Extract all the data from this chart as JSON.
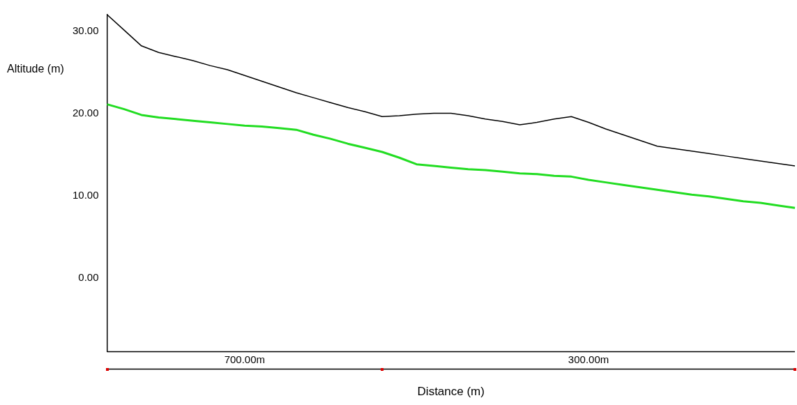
{
  "chart_data": {
    "type": "line",
    "xlabel": "Distance (m)",
    "ylabel": "Altitude (m)",
    "categories": [
      null,
      null,
      null,
      null,
      null,
      null,
      null,
      null,
      null,
      null,
      null,
      null,
      null,
      null,
      null,
      null,
      null,
      null,
      null,
      null,
      null,
      null,
      null,
      null,
      null,
      null,
      null,
      null,
      null,
      null,
      null,
      null,
      null,
      null,
      null,
      null,
      null,
      null,
      null,
      null,
      null
    ],
    "series": [
      {
        "color": "#000000",
        "values": [
          32.0,
          30.1,
          28.2,
          27.4,
          26.9,
          26.4,
          25.8,
          25.3,
          24.6,
          23.9,
          23.2,
          22.5,
          21.9,
          21.3,
          20.7,
          20.2,
          19.6,
          19.7,
          19.9,
          20.0,
          20.0,
          19.7,
          19.3,
          19.0,
          18.6,
          18.9,
          19.3,
          19.6,
          18.9,
          18.1,
          17.4,
          16.7,
          16.0,
          15.7,
          15.4,
          15.1,
          14.8,
          14.5,
          14.2,
          13.9,
          13.6
        ]
      },
      {
        "color": "#22dd22",
        "values": [
          21.1,
          20.5,
          19.8,
          19.5,
          19.3,
          19.1,
          18.9,
          18.7,
          18.5,
          18.4,
          18.2,
          18.0,
          17.4,
          16.9,
          16.3,
          15.8,
          15.3,
          14.6,
          13.8,
          13.6,
          13.4,
          13.2,
          13.1,
          12.9,
          12.7,
          12.6,
          12.4,
          12.3,
          11.9,
          11.6,
          11.3,
          11.0,
          10.7,
          10.4,
          10.1,
          9.9,
          9.6,
          9.3,
          9.1,
          8.8,
          8.5
        ]
      }
    ],
    "ylim": [
      -9,
      32
    ],
    "yticks": [
      {
        "value": 0,
        "label": "0.00"
      },
      {
        "value": 10,
        "label": "10.00"
      },
      {
        "value": 20,
        "label": "20.00"
      },
      {
        "value": 30,
        "label": "30.00"
      }
    ],
    "annotations": [
      "700.00m",
      "300.00m"
    ],
    "grid": false,
    "legend": false,
    "marker": "none",
    "line_style": "solid",
    "tick_labels": "y"
  }
}
